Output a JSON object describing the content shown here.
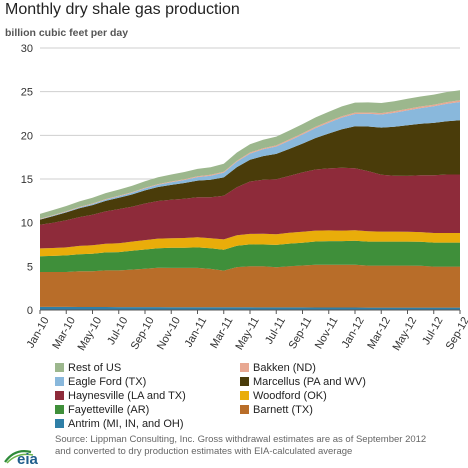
{
  "title": "Monthly dry shale gas production",
  "ylabel": "billion cubic feet per day",
  "source_line1": "Source: Lippman Consulting, Inc. Gross withdrawal estimates are as of September 2012",
  "source_line2": "and converted to dry production estimates with EIA-calculated average",
  "logo_text": "eia",
  "chart_data": {
    "type": "area",
    "stacked": true,
    "title": "Monthly dry shale gas production",
    "ylabel": "billion cubic feet per day",
    "xlabel": "",
    "ylim": [
      0,
      30
    ],
    "yticks": [
      0,
      5,
      10,
      15,
      20,
      25,
      30
    ],
    "grid": true,
    "legend_position": "bottom",
    "xtick_labels": [
      "Jan-10",
      "Mar-10",
      "May-10",
      "Jul-10",
      "Sep-10",
      "Nov-10",
      "Jan-11",
      "Mar-11",
      "May-11",
      "Jul-11",
      "Sep-11",
      "Nov-11",
      "Jan-12",
      "Mar-12",
      "May-12",
      "Jul-12",
      "Sep-12"
    ],
    "x": [
      "Jan-10",
      "Feb-10",
      "Mar-10",
      "Apr-10",
      "May-10",
      "Jun-10",
      "Jul-10",
      "Aug-10",
      "Sep-10",
      "Oct-10",
      "Nov-10",
      "Dec-10",
      "Jan-11",
      "Feb-11",
      "Mar-11",
      "Apr-11",
      "May-11",
      "Jun-11",
      "Jul-11",
      "Aug-11",
      "Sep-11",
      "Oct-11",
      "Nov-11",
      "Dec-11",
      "Jan-12",
      "Feb-12",
      "Mar-12",
      "Apr-12",
      "May-12",
      "Jun-12",
      "Jul-12",
      "Aug-12",
      "Sep-12"
    ],
    "series": [
      {
        "name": "Antrim (MI, IN, and OH)",
        "color": "#2f7fa7",
        "values": [
          0.35,
          0.35,
          0.35,
          0.34,
          0.34,
          0.34,
          0.33,
          0.33,
          0.33,
          0.33,
          0.32,
          0.32,
          0.32,
          0.31,
          0.31,
          0.31,
          0.31,
          0.3,
          0.3,
          0.3,
          0.3,
          0.29,
          0.29,
          0.29,
          0.29,
          0.28,
          0.28,
          0.28,
          0.28,
          0.27,
          0.27,
          0.27,
          0.27
        ]
      },
      {
        "name": "Barnett (TX)",
        "color": "#b86d29",
        "values": [
          4.0,
          4.0,
          4.0,
          4.1,
          4.1,
          4.2,
          4.2,
          4.3,
          4.4,
          4.5,
          4.5,
          4.5,
          4.5,
          4.4,
          4.2,
          4.6,
          4.7,
          4.7,
          4.6,
          4.7,
          4.8,
          4.9,
          4.9,
          4.9,
          4.9,
          4.8,
          4.8,
          4.8,
          4.8,
          4.8,
          4.7,
          4.7,
          4.7
        ]
      },
      {
        "name": "Fayetteville (AR)",
        "color": "#3f8f3a",
        "values": [
          1.8,
          1.85,
          1.9,
          1.95,
          2.0,
          2.05,
          2.1,
          2.15,
          2.2,
          2.25,
          2.3,
          2.3,
          2.35,
          2.35,
          2.4,
          2.45,
          2.5,
          2.5,
          2.55,
          2.6,
          2.6,
          2.65,
          2.7,
          2.7,
          2.75,
          2.75,
          2.75,
          2.75,
          2.75,
          2.75,
          2.75,
          2.75,
          2.75
        ]
      },
      {
        "name": "Woodford (OK)",
        "color": "#e9ad0a",
        "values": [
          0.9,
          0.9,
          0.92,
          0.95,
          0.97,
          1.0,
          1.02,
          1.05,
          1.07,
          1.1,
          1.1,
          1.12,
          1.15,
          1.15,
          1.17,
          1.2,
          1.2,
          1.22,
          1.22,
          1.25,
          1.25,
          1.25,
          1.22,
          1.2,
          1.2,
          1.18,
          1.15,
          1.15,
          1.12,
          1.1,
          1.1,
          1.1,
          1.1
        ]
      },
      {
        "name": "Haynesville (LA and TX)",
        "color": "#8e2b3a",
        "values": [
          2.7,
          2.9,
          3.1,
          3.3,
          3.5,
          3.7,
          3.9,
          4.0,
          4.2,
          4.3,
          4.4,
          4.5,
          4.6,
          4.7,
          5.0,
          5.5,
          6.0,
          6.2,
          6.3,
          6.5,
          6.8,
          7.0,
          7.1,
          7.2,
          7.1,
          6.9,
          6.5,
          6.4,
          6.4,
          6.5,
          6.6,
          6.7,
          6.7
        ]
      },
      {
        "name": "Marcellus (PA and WV)",
        "color": "#4a3c0a",
        "values": [
          0.6,
          0.75,
          0.9,
          1.0,
          1.1,
          1.2,
          1.3,
          1.4,
          1.5,
          1.6,
          1.7,
          1.8,
          1.9,
          2.0,
          2.1,
          2.3,
          2.5,
          2.7,
          2.9,
          3.1,
          3.3,
          3.6,
          4.0,
          4.4,
          4.8,
          5.1,
          5.4,
          5.6,
          5.8,
          5.9,
          6.0,
          6.1,
          6.2
        ]
      },
      {
        "name": "Eagle Ford (TX)",
        "color": "#89b8dc",
        "values": [
          0.05,
          0.07,
          0.09,
          0.11,
          0.13,
          0.15,
          0.17,
          0.19,
          0.22,
          0.26,
          0.3,
          0.35,
          0.4,
          0.47,
          0.55,
          0.63,
          0.7,
          0.78,
          0.85,
          0.95,
          1.05,
          1.15,
          1.25,
          1.35,
          1.4,
          1.45,
          1.5,
          1.6,
          1.7,
          1.8,
          1.9,
          2.0,
          2.1
        ]
      },
      {
        "name": "Bakken (ND)",
        "color": "#e8a892",
        "values": [
          0.05,
          0.05,
          0.05,
          0.06,
          0.06,
          0.06,
          0.07,
          0.07,
          0.08,
          0.08,
          0.09,
          0.09,
          0.1,
          0.1,
          0.11,
          0.11,
          0.12,
          0.12,
          0.13,
          0.13,
          0.14,
          0.14,
          0.15,
          0.15,
          0.16,
          0.16,
          0.17,
          0.17,
          0.18,
          0.18,
          0.19,
          0.19,
          0.2
        ]
      },
      {
        "name": "Rest of US",
        "color": "#9cb78d",
        "values": [
          0.55,
          0.58,
          0.6,
          0.63,
          0.66,
          0.68,
          0.7,
          0.72,
          0.75,
          0.78,
          0.8,
          0.82,
          0.84,
          0.86,
          0.9,
          0.93,
          0.96,
          0.98,
          1.0,
          1.02,
          1.05,
          1.07,
          1.1,
          1.12,
          1.15,
          1.15,
          1.15,
          1.15,
          1.15,
          1.15,
          1.15,
          1.15,
          1.15
        ]
      }
    ]
  },
  "legend": [
    {
      "label": "Rest of US",
      "color": "#9cb78d"
    },
    {
      "label": "Bakken (ND)",
      "color": "#e8a892"
    },
    {
      "label": "Eagle Ford (TX)",
      "color": "#89b8dc"
    },
    {
      "label": "Marcellus (PA and WV)",
      "color": "#4a3c0a"
    },
    {
      "label": "Haynesville (LA and TX)",
      "color": "#8e2b3a"
    },
    {
      "label": "Woodford (OK)",
      "color": "#e9ad0a"
    },
    {
      "label": "Fayetteville (AR)",
      "color": "#3f8f3a"
    },
    {
      "label": "Barnett (TX)",
      "color": "#b86d29"
    },
    {
      "label": "Antrim (MI, IN, and OH)",
      "color": "#2f7fa7"
    }
  ]
}
